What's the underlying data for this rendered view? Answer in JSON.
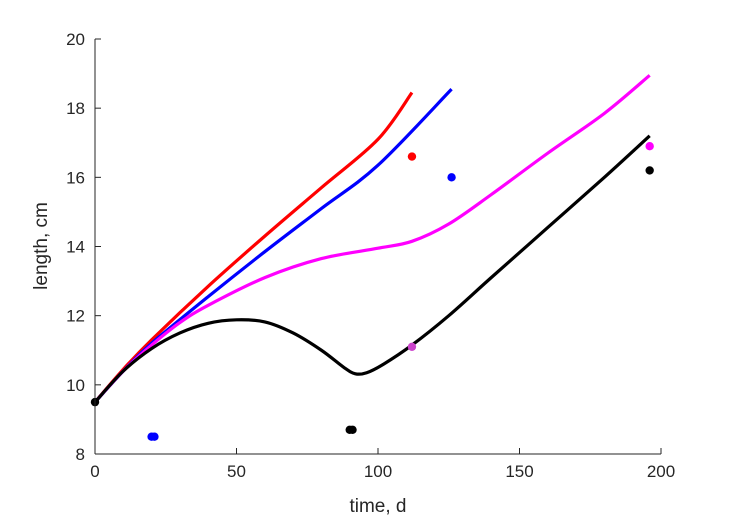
{
  "chart_data": {
    "type": "line",
    "xlabel": "time, d",
    "ylabel": "length, cm",
    "xlim": [
      0,
      200
    ],
    "ylim": [
      8,
      20
    ],
    "xticks": [
      0,
      50,
      100,
      150,
      200
    ],
    "yticks": [
      8,
      10,
      12,
      14,
      16,
      18,
      20
    ],
    "grid": false,
    "series": [
      {
        "color": "#ff0000",
        "points": [
          [
            0,
            9.5
          ],
          [
            10,
            10.45
          ],
          [
            20,
            11.3
          ],
          [
            40,
            12.85
          ],
          [
            60,
            14.3
          ],
          [
            80,
            15.7
          ],
          [
            100,
            17.1
          ],
          [
            112,
            18.45
          ]
        ]
      },
      {
        "color": "#0000ff",
        "points": [
          [
            0,
            9.5
          ],
          [
            10,
            10.4
          ],
          [
            20,
            11.2
          ],
          [
            40,
            12.55
          ],
          [
            60,
            13.85
          ],
          [
            80,
            15.1
          ],
          [
            100,
            16.35
          ],
          [
            126,
            18.55
          ]
        ]
      },
      {
        "color": "#ff00ff",
        "points": [
          [
            0,
            9.5
          ],
          [
            10,
            10.4
          ],
          [
            20,
            11.15
          ],
          [
            30,
            11.8
          ],
          [
            40,
            12.3
          ],
          [
            60,
            13.1
          ],
          [
            80,
            13.65
          ],
          [
            100,
            13.95
          ],
          [
            112,
            14.15
          ],
          [
            125,
            14.65
          ],
          [
            140,
            15.5
          ],
          [
            160,
            16.7
          ],
          [
            180,
            17.85
          ],
          [
            196,
            18.95
          ]
        ]
      },
      {
        "color": "#000000",
        "points": [
          [
            0,
            9.5
          ],
          [
            10,
            10.4
          ],
          [
            20,
            11.05
          ],
          [
            30,
            11.5
          ],
          [
            40,
            11.78
          ],
          [
            50,
            11.88
          ],
          [
            60,
            11.82
          ],
          [
            70,
            11.5
          ],
          [
            80,
            11.0
          ],
          [
            88,
            10.5
          ],
          [
            92,
            10.32
          ],
          [
            96,
            10.35
          ],
          [
            102,
            10.6
          ],
          [
            112,
            11.15
          ],
          [
            125,
            12.0
          ],
          [
            140,
            13.1
          ],
          [
            160,
            14.55
          ],
          [
            180,
            16.0
          ],
          [
            196,
            17.2
          ]
        ]
      }
    ],
    "observed": [
      {
        "x": 0,
        "y": 9.5,
        "color": "#000000"
      },
      {
        "x": 20,
        "y": 8.5,
        "color": "#0000ff"
      },
      {
        "x": 21,
        "y": 8.5,
        "color": "#0000ff"
      },
      {
        "x": 90,
        "y": 8.7,
        "color": "#000000"
      },
      {
        "x": 91,
        "y": 8.7,
        "color": "#000000"
      },
      {
        "x": 112,
        "y": 11.1,
        "color": "#cc44cc"
      },
      {
        "x": 112,
        "y": 16.6,
        "color": "#ff0000"
      },
      {
        "x": 126,
        "y": 16.0,
        "color": "#0000ff"
      },
      {
        "x": 196,
        "y": 16.9,
        "color": "#ff00ff"
      },
      {
        "x": 196,
        "y": 16.2,
        "color": "#000000"
      }
    ]
  }
}
